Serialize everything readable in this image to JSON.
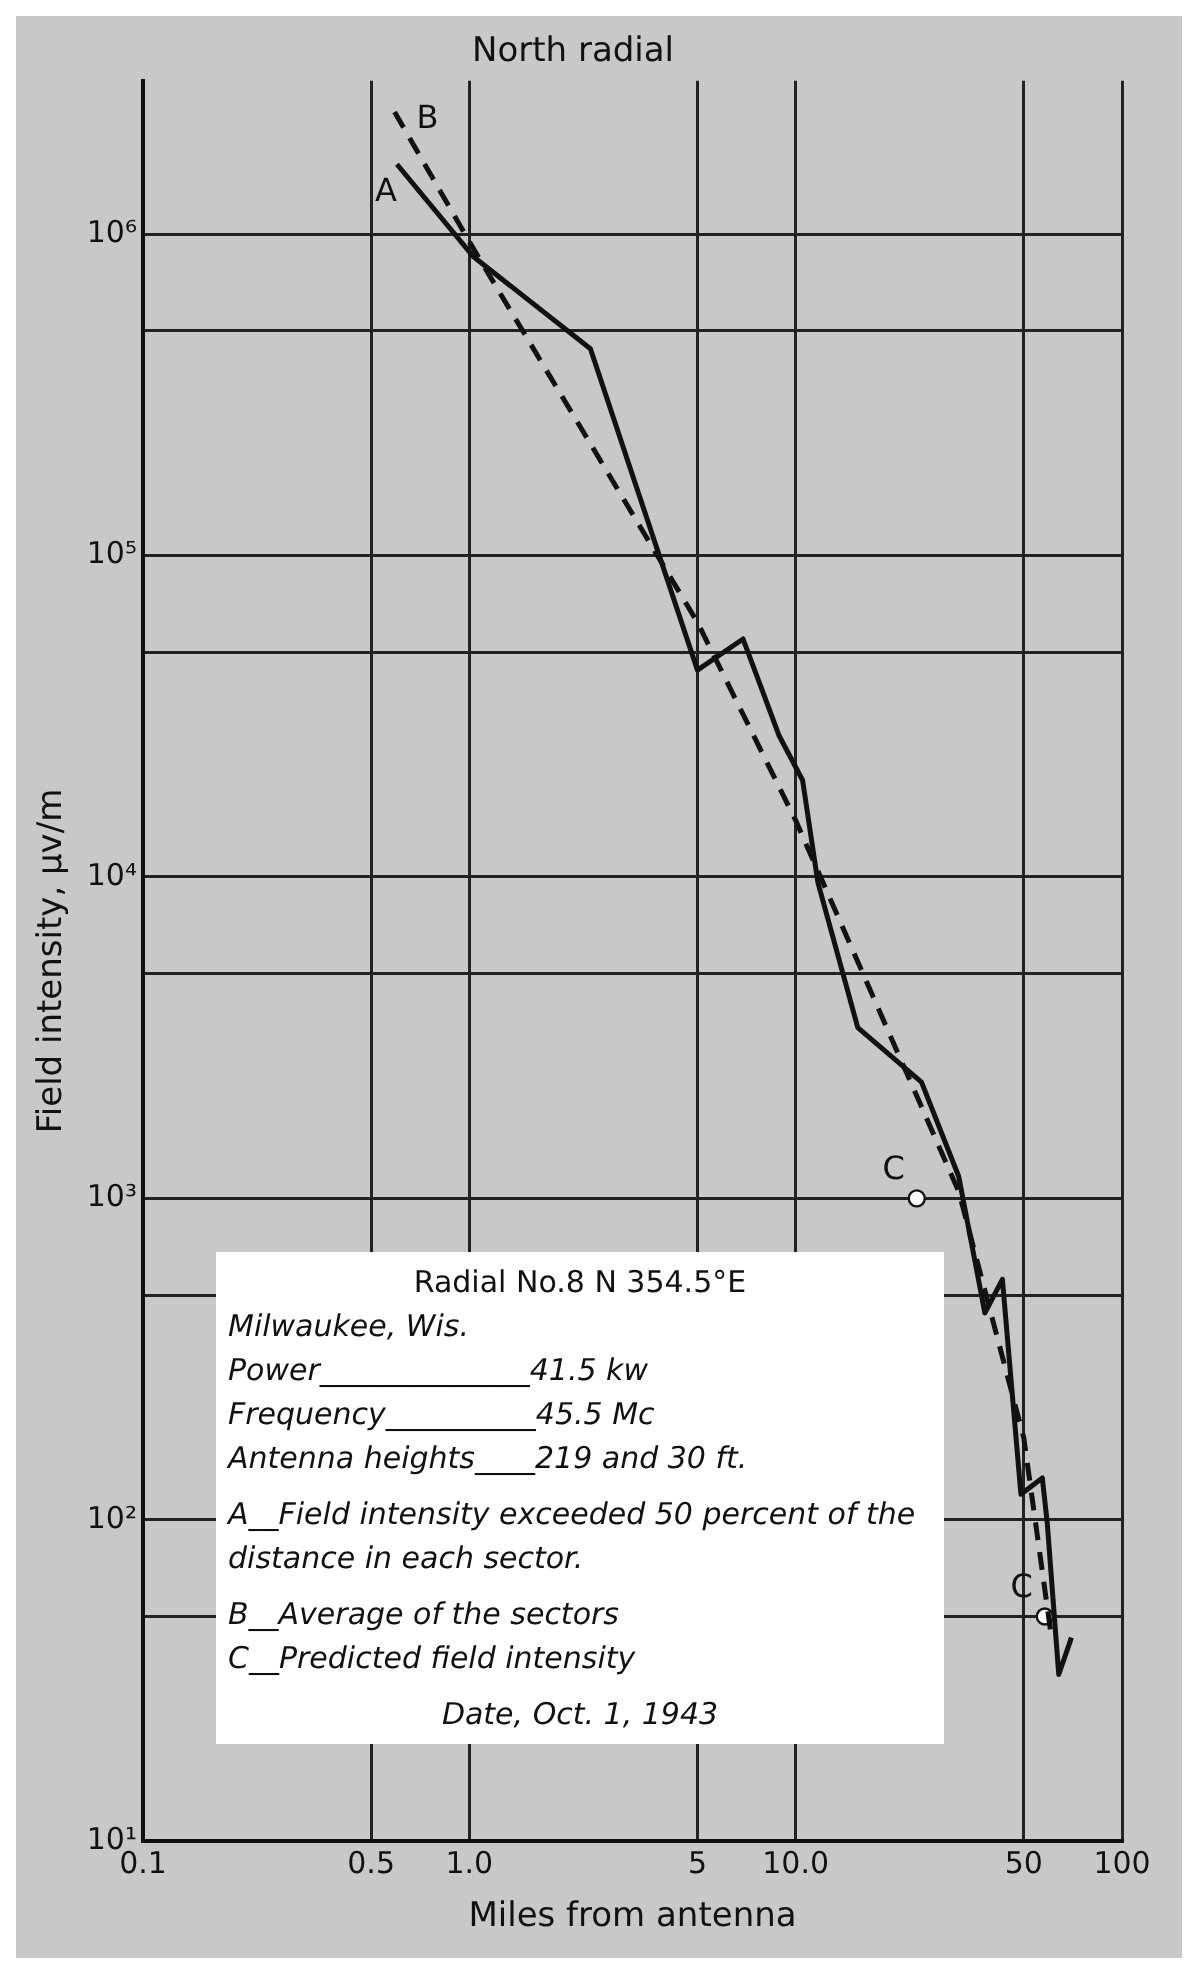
{
  "chart_data": {
    "type": "line",
    "title": "North radial",
    "xlabel": "Miles from antenna",
    "ylabel": "Field intensity, µv/m",
    "log": "xy",
    "grid": true,
    "legend": false,
    "xlim": [
      0.1,
      100
    ],
    "xticks": [
      0.1,
      0.5,
      {
        "value": 1,
        "label": "1.0"
      },
      5,
      {
        "value": 10,
        "label": "10.0"
      },
      50,
      100
    ],
    "ylim": [
      10,
      3000000
    ],
    "yticks": [
      {
        "value": 10,
        "label": "10¹"
      },
      {
        "value": 50,
        "label": null
      },
      {
        "value": 100,
        "label": "10²"
      },
      {
        "value": 500,
        "label": null
      },
      {
        "value": 1000,
        "label": "10³"
      },
      {
        "value": 5000,
        "label": null
      },
      {
        "value": 10000,
        "label": "10⁴"
      },
      {
        "value": 50000,
        "label": null
      },
      {
        "value": 100000,
        "label": "10⁵"
      },
      {
        "value": 500000,
        "label": null
      },
      {
        "value": 1000000,
        "label": "10⁶"
      }
    ],
    "series": [
      {
        "name": "A",
        "type": "line",
        "color": "#111111",
        "line_style": "solid",
        "marker": "none",
        "x": [
          0.6,
          1.03,
          2.35,
          5,
          6.9,
          8.9,
          10.5,
          11.7,
          15.5,
          24.3,
          31.6,
          38,
          43,
          49,
          57,
          59,
          64,
          70
        ],
        "values": [
          1650000,
          850000,
          440000,
          44000,
          55000,
          27500,
          20000,
          9600,
          3400,
          2300,
          1170,
          440,
          560,
          120,
          135,
          98,
          33,
          43
        ]
      },
      {
        "name": "B",
        "type": "line",
        "color": "#111111",
        "line_style": "dashed",
        "marker": "none",
        "x": [
          0.59,
          1.03,
          5,
          10,
          31.6,
          50,
          61
        ],
        "values": [
          2400000,
          900000,
          62000,
          15000,
          1050,
          180,
          42
        ]
      },
      {
        "name": "C",
        "type": "scatter",
        "color": "#111111",
        "marker": "circle",
        "x": [
          23.5,
          58
        ],
        "values": [
          1000,
          50
        ]
      }
    ],
    "annotations": [
      "Radial No.8 N 354.5°E",
      "Milwaukee, Wis.",
      "Power______________41.5 kw",
      "Frequency__________45.5 Mc",
      "Antenna heights____219 and 30 ft.",
      "A__Field intensity exceeded 50 percent of the distance in each sector.",
      "B__Average of the sectors",
      "C__Predicted field intensity",
      "Date, Oct. 1, 1943"
    ]
  }
}
